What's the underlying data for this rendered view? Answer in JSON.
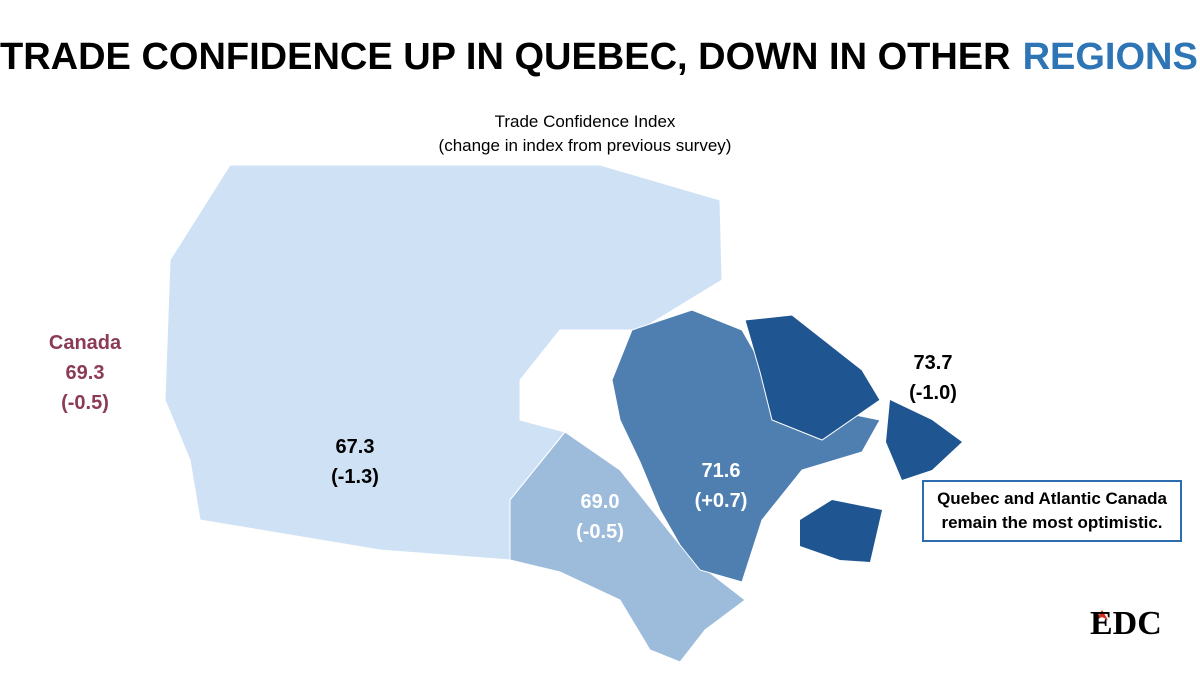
{
  "header": {
    "title_parts": [
      "TRADE CONFIDENCE UP IN QUEBEC, DOWN IN OTHER",
      "REGIONS",
      "."
    ]
  },
  "subtitle": [
    "Trade Confidence Index",
    "(change in index from previous survey)"
  ],
  "national": {
    "name": "Canada",
    "value": "69.3",
    "change": "(-0.5)"
  },
  "regions": [
    {
      "value": "67.3",
      "change": "(-1.3)"
    },
    {
      "value": "69.0",
      "change": "(-0.5)"
    },
    {
      "value": "71.6",
      "change": "(+0.7)"
    },
    {
      "value": "73.7",
      "change": "(-1.0)"
    }
  ],
  "callout": [
    "Quebec and Atlantic Canada",
    "remain the most optimistic."
  ],
  "logo": "EDC"
}
